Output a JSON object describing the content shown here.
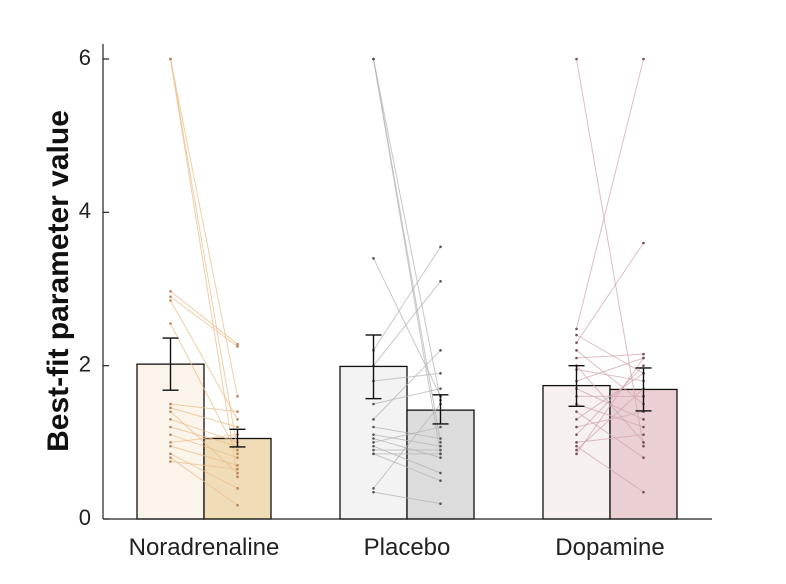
{
  "chart_data": {
    "type": "bar",
    "title": "",
    "xlabel": "",
    "ylabel": "Best-fit parameter value",
    "ylim": [
      0,
      6.2
    ],
    "yticks": [
      "0",
      "2",
      "4",
      "6"
    ],
    "grid": false,
    "categories": [
      "Noradrenaline",
      "Placebo",
      "Dopamine"
    ],
    "groups": [
      {
        "category": "Noradrenaline",
        "colors": {
          "bar1": "#fbf4ea",
          "bar2": "#f0ddb7",
          "line": "#e9bf8c",
          "point": "#b8865a"
        },
        "bars": [
          {
            "mean": 2.02,
            "err_low": 1.68,
            "err_high": 2.36
          },
          {
            "mean": 1.05,
            "err_low": 0.94,
            "err_high": 1.17
          }
        ],
        "pairs": [
          [
            6.0,
            1.6
          ],
          [
            6.0,
            0.9
          ],
          [
            6.0,
            0.55
          ],
          [
            2.97,
            2.28
          ],
          [
            2.9,
            2.25
          ],
          [
            2.85,
            1.3
          ],
          [
            2.55,
            0.85
          ],
          [
            1.5,
            1.4
          ],
          [
            1.45,
            1.2
          ],
          [
            1.4,
            0.6
          ],
          [
            1.3,
            1.0
          ],
          [
            1.2,
            0.95
          ],
          [
            1.1,
            0.8
          ],
          [
            1.0,
            1.1
          ],
          [
            0.95,
            0.7
          ],
          [
            0.85,
            0.4
          ],
          [
            0.8,
            0.18
          ],
          [
            0.75,
            0.65
          ]
        ]
      },
      {
        "category": "Placebo",
        "colors": {
          "bar1": "#f3f3f3",
          "bar2": "#dcdcdc",
          "line": "#b4b4b4",
          "point": "#555555"
        },
        "bars": [
          {
            "mean": 1.99,
            "err_low": 1.57,
            "err_high": 2.4
          },
          {
            "mean": 1.42,
            "err_low": 1.24,
            "err_high": 1.62
          }
        ],
        "pairs": [
          [
            6.0,
            1.55
          ],
          [
            6.0,
            1.0
          ],
          [
            6.0,
            0.85
          ],
          [
            3.4,
            1.6
          ],
          [
            2.2,
            3.55
          ],
          [
            2.0,
            3.1
          ],
          [
            1.8,
            1.9
          ],
          [
            1.5,
            1.7
          ],
          [
            1.3,
            2.2
          ],
          [
            1.2,
            1.05
          ],
          [
            1.1,
            0.95
          ],
          [
            1.05,
            0.8
          ],
          [
            1.0,
            1.2
          ],
          [
            0.95,
            0.6
          ],
          [
            0.9,
            0.9
          ],
          [
            0.85,
            0.5
          ],
          [
            0.85,
            0.85
          ],
          [
            0.4,
            1.5
          ],
          [
            0.35,
            0.2
          ]
        ]
      },
      {
        "category": "Dopamine",
        "colors": {
          "bar1": "#f6f0f1",
          "bar2": "#ead0d3",
          "line": "#d1a8b0",
          "point": "#7a4a55"
        },
        "bars": [
          {
            "mean": 1.74,
            "err_low": 1.47,
            "err_high": 2.0
          },
          {
            "mean": 1.69,
            "err_low": 1.41,
            "err_high": 1.97
          }
        ],
        "pairs": [
          [
            6.0,
            0.95
          ],
          [
            2.48,
            6.0
          ],
          [
            2.4,
            1.9
          ],
          [
            2.3,
            3.6
          ],
          [
            2.2,
            1.5
          ],
          [
            2.1,
            2.15
          ],
          [
            2.0,
            1.0
          ],
          [
            1.95,
            1.8
          ],
          [
            1.8,
            2.1
          ],
          [
            1.7,
            1.3
          ],
          [
            1.6,
            1.6
          ],
          [
            1.5,
            1.2
          ],
          [
            1.4,
            0.8
          ],
          [
            1.3,
            1.9
          ],
          [
            1.2,
            1.4
          ],
          [
            1.1,
            2.0
          ],
          [
            1.0,
            1.1
          ],
          [
            0.95,
            0.35
          ],
          [
            0.9,
            1.7
          ],
          [
            0.85,
            2.1
          ]
        ]
      }
    ]
  }
}
